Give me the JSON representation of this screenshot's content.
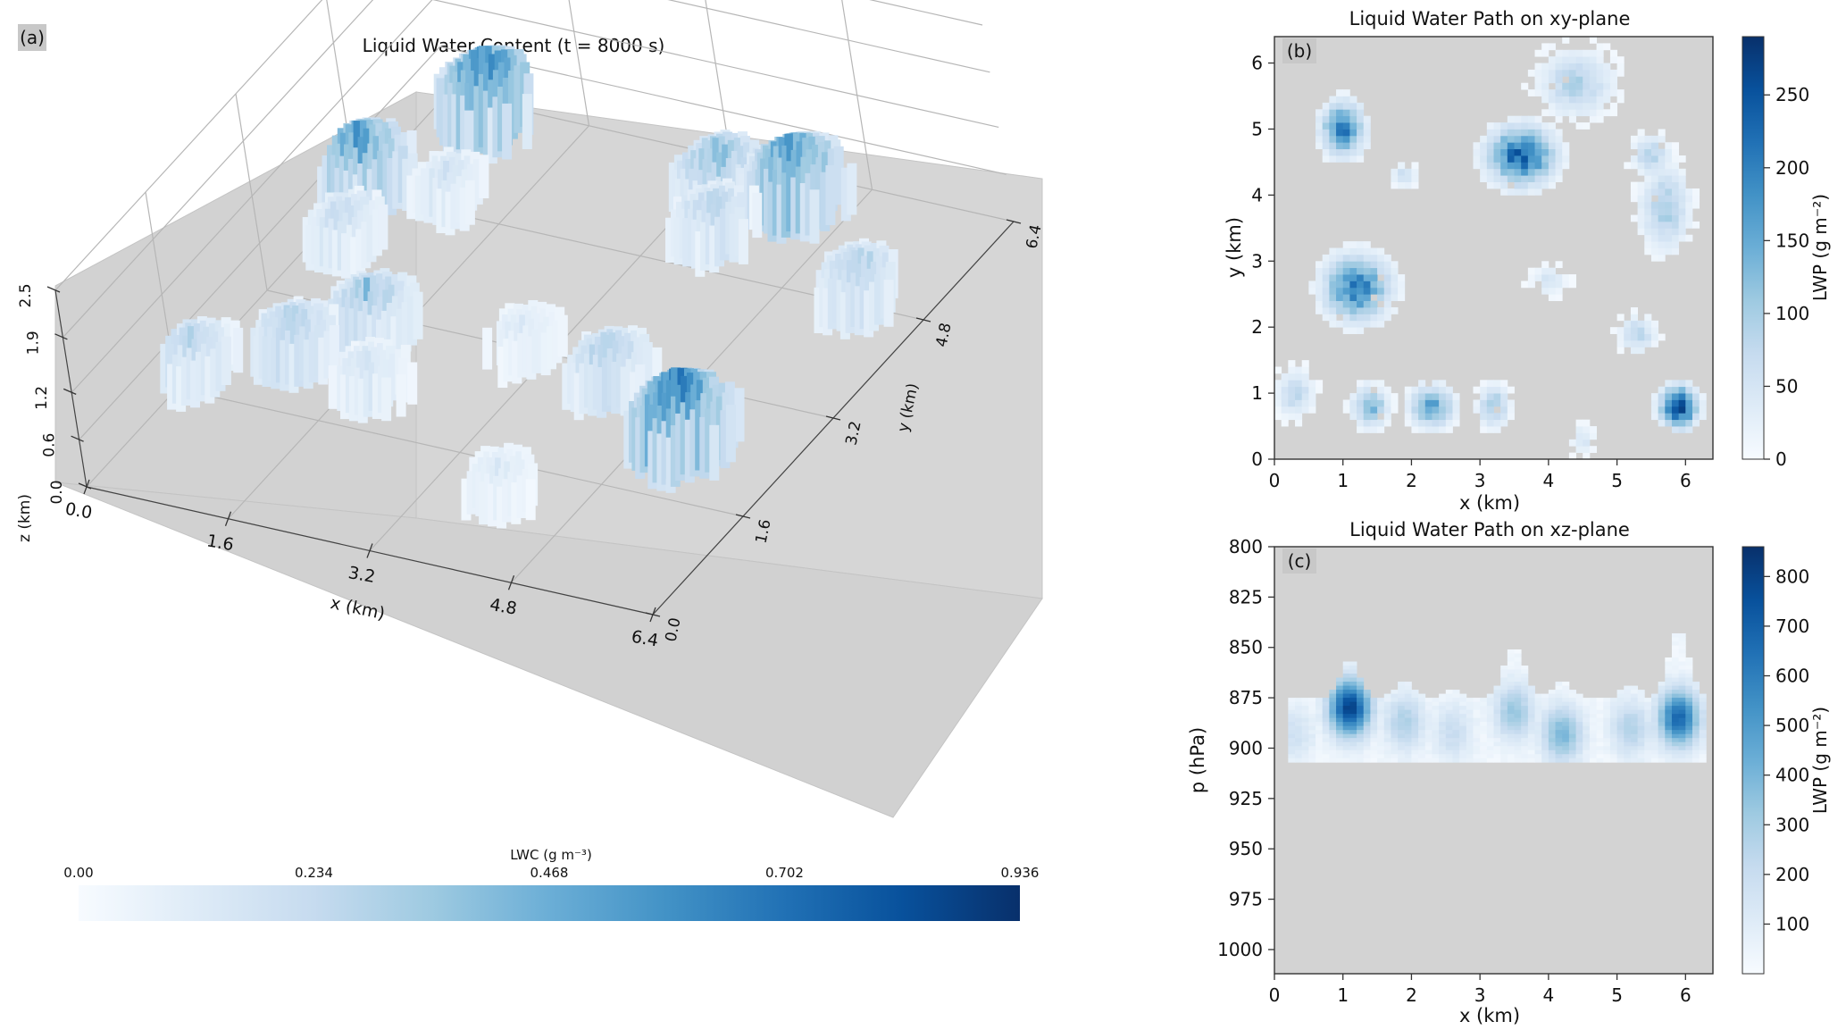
{
  "panel_a": {
    "tag": "(a)",
    "title": "Liquid Water Content (t = 8000 s)",
    "colorbar_label": "LWC (g m⁻³)",
    "colorbar_ticks": [
      "0.00",
      "0.234",
      "0.468",
      "0.702",
      "0.936"
    ]
  },
  "panel_b": {
    "tag": "(b)",
    "title": "Liquid Water Path on xy-plane",
    "colorbar_label": "LWP (g m⁻²)"
  },
  "panel_c": {
    "tag": "(c)",
    "title": "Liquid Water Path on xz-plane",
    "colorbar_label": "LWP (g m⁻²)"
  },
  "colors": {
    "background_gray": "#d3d3d3",
    "cmap_low": "#f7fbff",
    "cmap_high": "#08306b"
  },
  "chart_data": [
    {
      "type": "heatmap",
      "title": "Liquid Water Content (t = 8000 s)",
      "plot": "3d-voxel",
      "xlabel": "x (km)",
      "ylabel": "y (km)",
      "zlabel": "z (km)",
      "xticks": [
        "0.0",
        "1.6",
        "3.2",
        "4.8",
        "6.4"
      ],
      "yticks": [
        "0.0",
        "1.6",
        "3.2",
        "4.8",
        "6.4"
      ],
      "zticks": [
        "0.0",
        "0.6",
        "1.2",
        "1.9",
        "2.5"
      ],
      "xlim": [
        0,
        6.4
      ],
      "ylim": [
        0,
        6.4
      ],
      "zlim": [
        0,
        2.5
      ],
      "colorbar": {
        "label": "LWC (g m⁻³)",
        "range": [
          0,
          0.936
        ],
        "ticks": [
          0,
          0.234,
          0.468,
          0.702,
          0.936
        ],
        "colormap": "Blues"
      },
      "clouds": [
        {
          "x": 0.9,
          "y": 5.9,
          "intensity": 0.7
        },
        {
          "x": 0.3,
          "y": 4.6,
          "intensity": 0.6
        },
        {
          "x": 0.6,
          "y": 3.8,
          "intensity": 0.25
        },
        {
          "x": 1.2,
          "y": 4.7,
          "intensity": 0.2
        },
        {
          "x": 3.7,
          "y": 5.6,
          "intensity": 0.45
        },
        {
          "x": 4.5,
          "y": 5.7,
          "intensity": 0.65
        },
        {
          "x": 4.0,
          "y": 5.0,
          "intensity": 0.3
        },
        {
          "x": 0.3,
          "y": 1.6,
          "intensity": 0.3
        },
        {
          "x": 1.1,
          "y": 2.1,
          "intensity": 0.35
        },
        {
          "x": 1.6,
          "y": 2.7,
          "intensity": 0.4
        },
        {
          "x": 2.1,
          "y": 1.9,
          "intensity": 0.2
        },
        {
          "x": 3.2,
          "y": 2.9,
          "intensity": 0.15
        },
        {
          "x": 4.3,
          "y": 2.7,
          "intensity": 0.35
        },
        {
          "x": 5.5,
          "y": 2.1,
          "intensity": 0.75
        },
        {
          "x": 5.9,
          "y": 4.6,
          "intensity": 0.35
        },
        {
          "x": 4.2,
          "y": 0.9,
          "intensity": 0.15
        }
      ]
    },
    {
      "type": "heatmap",
      "title": "Liquid Water Path on xy-plane",
      "xlabel": "x (km)",
      "ylabel": "y (km)",
      "xticks": [
        0,
        1,
        2,
        3,
        4,
        5,
        6
      ],
      "yticks": [
        0,
        1,
        2,
        3,
        4,
        5,
        6
      ],
      "xlim": [
        0,
        6.4
      ],
      "ylim": [
        0,
        6.4
      ],
      "colorbar": {
        "label": "LWP (g m⁻²)",
        "range": [
          0,
          290
        ],
        "ticks": [
          0,
          50,
          100,
          150,
          200,
          250
        ],
        "colormap": "Blues"
      },
      "grid_resolution": 64,
      "blobs": [
        {
          "x": 1.0,
          "y": 5.0,
          "rx": 0.35,
          "ry": 0.45,
          "peak": 210
        },
        {
          "x": 1.2,
          "y": 2.6,
          "rx": 0.55,
          "ry": 0.55,
          "peak": 200
        },
        {
          "x": 3.6,
          "y": 4.6,
          "rx": 0.55,
          "ry": 0.5,
          "peak": 230
        },
        {
          "x": 4.4,
          "y": 5.7,
          "rx": 0.6,
          "ry": 0.55,
          "peak": 90
        },
        {
          "x": 5.9,
          "y": 0.8,
          "rx": 0.3,
          "ry": 0.35,
          "peak": 285
        },
        {
          "x": 5.7,
          "y": 3.8,
          "rx": 0.4,
          "ry": 0.7,
          "peak": 100
        },
        {
          "x": 5.5,
          "y": 4.6,
          "rx": 0.3,
          "ry": 0.35,
          "peak": 90
        },
        {
          "x": 2.3,
          "y": 0.8,
          "rx": 0.35,
          "ry": 0.35,
          "peak": 160
        },
        {
          "x": 1.4,
          "y": 0.8,
          "rx": 0.3,
          "ry": 0.35,
          "peak": 130
        },
        {
          "x": 3.2,
          "y": 0.8,
          "rx": 0.25,
          "ry": 0.35,
          "peak": 110
        },
        {
          "x": 0.3,
          "y": 1.0,
          "rx": 0.3,
          "ry": 0.4,
          "peak": 80
        },
        {
          "x": 5.3,
          "y": 1.9,
          "rx": 0.3,
          "ry": 0.3,
          "peak": 80
        },
        {
          "x": 1.9,
          "y": 4.3,
          "rx": 0.2,
          "ry": 0.2,
          "peak": 70
        },
        {
          "x": 4.0,
          "y": 2.7,
          "rx": 0.3,
          "ry": 0.25,
          "peak": 50
        },
        {
          "x": 4.5,
          "y": 0.3,
          "rx": 0.2,
          "ry": 0.25,
          "peak": 50
        }
      ]
    },
    {
      "type": "heatmap",
      "title": "Liquid Water Path on xz-plane",
      "xlabel": "x (km)",
      "ylabel": "p (hPa)",
      "xticks": [
        0,
        1,
        2,
        3,
        4,
        5,
        6
      ],
      "yticks": [
        800,
        825,
        850,
        875,
        900,
        925,
        950,
        975,
        1000
      ],
      "xlim": [
        0,
        6.4
      ],
      "ylim": [
        1012,
        800
      ],
      "colorbar": {
        "label": "LWP (g m⁻²)",
        "range": [
          0,
          860
        ],
        "ticks": [
          100,
          200,
          300,
          400,
          500,
          600,
          700,
          800
        ],
        "colormap": "Blues"
      },
      "cloud_base_hPa": 907,
      "cloud_layer_top_hPa": 877,
      "columns": [
        {
          "x": 1.1,
          "top_hPa": 858,
          "peak_hPa": 880,
          "peak": 790
        },
        {
          "x": 1.9,
          "top_hPa": 868,
          "peak_hPa": 887,
          "peak": 260
        },
        {
          "x": 3.5,
          "top_hPa": 851,
          "peak_hPa": 882,
          "peak": 310
        },
        {
          "x": 4.2,
          "top_hPa": 868,
          "peak_hPa": 893,
          "peak": 380
        },
        {
          "x": 5.9,
          "top_hPa": 843,
          "peak_hPa": 885,
          "peak": 660
        },
        {
          "x": 5.2,
          "top_hPa": 870,
          "peak_hPa": 890,
          "peak": 250
        },
        {
          "x": 0.3,
          "top_hPa": 878,
          "peak_hPa": 893,
          "peak": 150
        },
        {
          "x": 2.6,
          "top_hPa": 872,
          "peak_hPa": 892,
          "peak": 180
        }
      ]
    }
  ]
}
